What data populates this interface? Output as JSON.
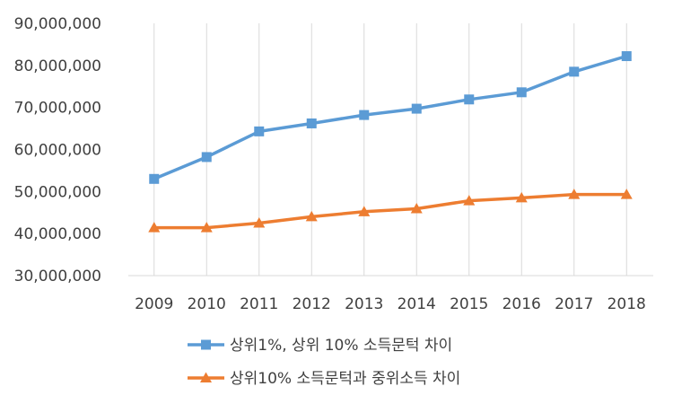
{
  "chart_data": {
    "type": "line",
    "title": "",
    "xlabel": "",
    "ylabel": "",
    "categories": [
      "2009",
      "2010",
      "2011",
      "2012",
      "2013",
      "2014",
      "2015",
      "2016",
      "2017",
      "2018"
    ],
    "ylim": [
      30000000,
      90000000
    ],
    "ytick_values": [
      30000000,
      40000000,
      50000000,
      60000000,
      70000000,
      80000000,
      90000000
    ],
    "ytick_labels": [
      "30,000,000",
      "40,000,000",
      "50,000,000",
      "60,000,000",
      "70,000,000",
      "80,000,000",
      "90,000,000"
    ],
    "vertical_gridlines": true,
    "legend_position": "bottom",
    "series": [
      {
        "name": "상위1%, 상위 10% 소득문턱 차이",
        "marker": "square",
        "color": "#5b9bd5",
        "values": [
          53000000,
          58200000,
          64300000,
          66200000,
          68200000,
          69700000,
          71900000,
          73600000,
          78500000,
          82200000
        ]
      },
      {
        "name": "상위10% 소득문턱과 중위소득 차이",
        "marker": "triangle",
        "color": "#ed7d31",
        "values": [
          41400000,
          41400000,
          42500000,
          44000000,
          45200000,
          45900000,
          47800000,
          48500000,
          49300000,
          49300000
        ]
      }
    ]
  },
  "colors": {
    "gridline": "#d9d9d9",
    "axis": "#d9d9d9",
    "text": "#404040"
  }
}
